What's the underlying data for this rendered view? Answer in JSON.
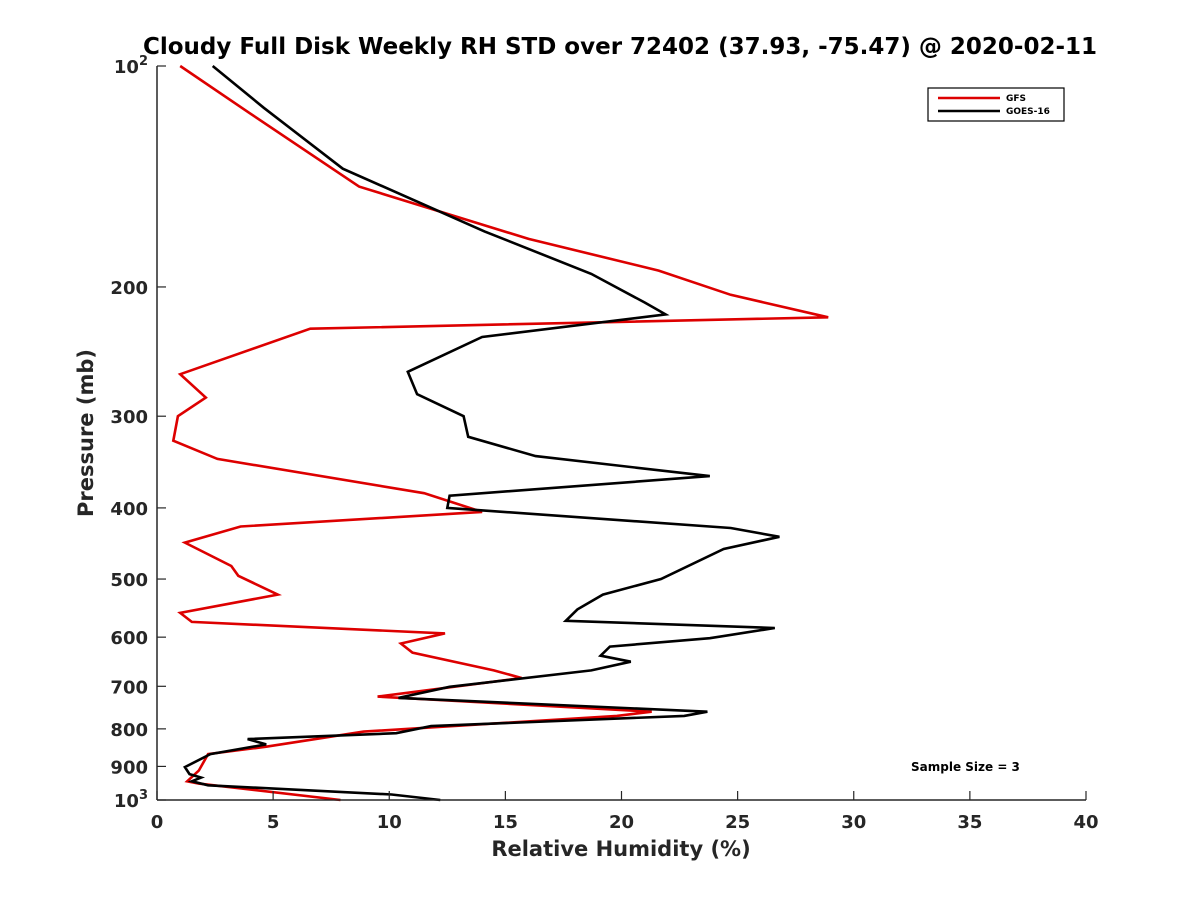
{
  "chart_data": {
    "type": "line",
    "title": "Cloudy Full Disk Weekly RH STD over 72402 (37.93, -75.47) @ 2020-02-11",
    "xlabel": "Relative Humidity (%)",
    "ylabel": "Pressure (mb)",
    "xlim": [
      0,
      40
    ],
    "ylim": [
      100,
      1000
    ],
    "yscale": "log",
    "y_reversed": true,
    "x_ticks": [
      {
        "value": 0,
        "label": "0"
      },
      {
        "value": 5,
        "label": "5"
      },
      {
        "value": 10,
        "label": "10"
      },
      {
        "value": 15,
        "label": "15"
      },
      {
        "value": 20,
        "label": "20"
      },
      {
        "value": 25,
        "label": "25"
      },
      {
        "value": 30,
        "label": "30"
      },
      {
        "value": 35,
        "label": "35"
      },
      {
        "value": 40,
        "label": "40"
      }
    ],
    "y_ticks": [
      {
        "value": 100,
        "base": "10",
        "exp": "2"
      },
      {
        "value": 200,
        "base": "200"
      },
      {
        "value": 300,
        "base": "300"
      },
      {
        "value": 400,
        "base": "400"
      },
      {
        "value": 500,
        "base": "500"
      },
      {
        "value": 600,
        "base": "600"
      },
      {
        "value": 700,
        "base": "700"
      },
      {
        "value": 800,
        "base": "800"
      },
      {
        "value": 900,
        "base": "900"
      },
      {
        "value": 1000,
        "base": "10",
        "exp": "3"
      }
    ],
    "grid": false,
    "legend_position": "top-right",
    "annotation": "Sample Size = 3",
    "series": [
      {
        "name": "GFS",
        "color": "#dd0000",
        "points": [
          [
            1.0,
            100
          ],
          [
            4.0,
            116
          ],
          [
            8.7,
            146
          ],
          [
            16.0,
            172
          ],
          [
            21.6,
            190
          ],
          [
            24.7,
            205
          ],
          [
            28.9,
            220
          ],
          [
            6.6,
            228
          ],
          [
            1.0,
            263
          ],
          [
            2.1,
            283
          ],
          [
            0.9,
            300
          ],
          [
            0.7,
            324
          ],
          [
            2.6,
            343
          ],
          [
            11.5,
            382
          ],
          [
            14.0,
            405
          ],
          [
            3.6,
            424
          ],
          [
            1.2,
            446
          ],
          [
            3.2,
            480
          ],
          [
            3.5,
            495
          ],
          [
            5.2,
            525
          ],
          [
            1.0,
            556
          ],
          [
            1.5,
            572
          ],
          [
            12.4,
            593
          ],
          [
            10.5,
            612
          ],
          [
            11.0,
            630
          ],
          [
            14.5,
            666
          ],
          [
            15.7,
            682
          ],
          [
            9.5,
            723
          ],
          [
            21.3,
            758
          ],
          [
            19.8,
            768
          ],
          [
            8.9,
            807
          ],
          [
            4.7,
            846
          ],
          [
            2.2,
            866
          ],
          [
            1.8,
            912
          ],
          [
            1.3,
            943
          ],
          [
            1.8,
            950
          ],
          [
            7.9,
            1000
          ]
        ]
      },
      {
        "name": "GOES-16",
        "color": "#000000",
        "points": [
          [
            2.4,
            100
          ],
          [
            4.6,
            114
          ],
          [
            8.0,
            138
          ],
          [
            14.1,
            168
          ],
          [
            18.7,
            192
          ],
          [
            21.0,
            210
          ],
          [
            21.9,
            218
          ],
          [
            14.0,
            234
          ],
          [
            10.8,
            261
          ],
          [
            11.2,
            280
          ],
          [
            13.2,
            300
          ],
          [
            13.4,
            320
          ],
          [
            16.3,
            340
          ],
          [
            23.8,
            362
          ],
          [
            12.6,
            385
          ],
          [
            12.5,
            400
          ],
          [
            24.7,
            426
          ],
          [
            26.8,
            438
          ],
          [
            24.4,
            455
          ],
          [
            21.7,
            500
          ],
          [
            19.2,
            525
          ],
          [
            18.1,
            550
          ],
          [
            17.6,
            570
          ],
          [
            26.6,
            583
          ],
          [
            23.8,
            602
          ],
          [
            19.5,
            618
          ],
          [
            19.1,
            636
          ],
          [
            20.4,
            648
          ],
          [
            18.7,
            666
          ],
          [
            12.6,
            701
          ],
          [
            10.4,
            726
          ],
          [
            23.7,
            758
          ],
          [
            22.7,
            768
          ],
          [
            11.8,
            793
          ],
          [
            10.3,
            811
          ],
          [
            3.9,
            826
          ],
          [
            4.7,
            840
          ],
          [
            2.3,
            866
          ],
          [
            1.2,
            902
          ],
          [
            1.4,
            922
          ],
          [
            1.9,
            932
          ],
          [
            1.5,
            943
          ],
          [
            2.2,
            955
          ],
          [
            10.1,
            983
          ],
          [
            12.2,
            1000
          ]
        ]
      }
    ]
  }
}
